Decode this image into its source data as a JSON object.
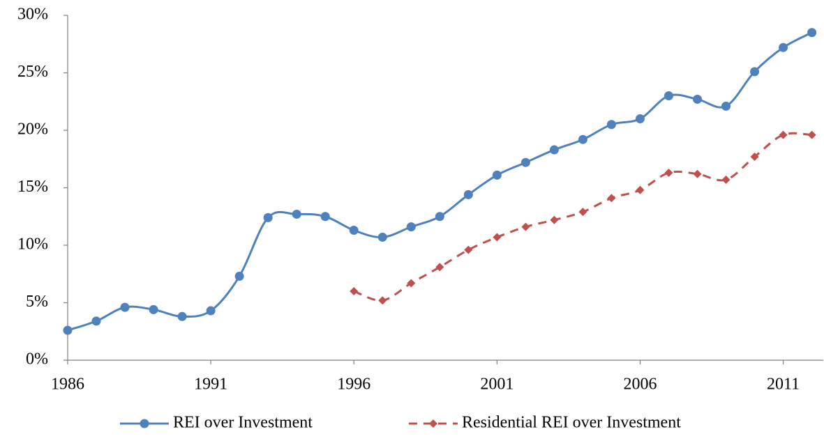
{
  "chart_data": {
    "type": "line",
    "x": [
      1986,
      1987,
      1988,
      1989,
      1990,
      1991,
      1992,
      1993,
      1994,
      1995,
      1996,
      1997,
      1998,
      1999,
      2000,
      2001,
      2002,
      2003,
      2004,
      2005,
      2006,
      2007,
      2008,
      2009,
      2010,
      2011,
      2012
    ],
    "series": [
      {
        "name": "REI over Investment",
        "color": "#4f81bd",
        "marker": "circle",
        "dash": "solid",
        "values": [
          2.6,
          3.4,
          4.6,
          4.4,
          3.8,
          4.3,
          7.3,
          12.4,
          12.7,
          12.5,
          11.3,
          10.7,
          11.6,
          12.5,
          14.4,
          16.1,
          17.2,
          18.3,
          19.2,
          20.5,
          21.0,
          23.0,
          22.7,
          22.1,
          25.1,
          27.2,
          28.5
        ]
      },
      {
        "name": "Residential REI over Investment",
        "color": "#c0504d",
        "marker": "diamond",
        "dash": "dashed",
        "values": [
          null,
          null,
          null,
          null,
          null,
          null,
          null,
          null,
          null,
          null,
          6.0,
          5.2,
          6.7,
          8.1,
          9.6,
          10.7,
          11.6,
          12.2,
          12.9,
          14.1,
          14.8,
          16.3,
          16.2,
          15.7,
          17.7,
          19.6,
          19.6
        ]
      }
    ],
    "xlim": [
      1986,
      2012.4
    ],
    "xticks": [
      1986,
      1991,
      1996,
      2001,
      2006,
      2011
    ],
    "ylim": [
      0,
      30
    ],
    "yticks": [
      {
        "value": 0,
        "label": "0%"
      },
      {
        "value": 5,
        "label": "5%"
      },
      {
        "value": 10,
        "label": "10%"
      },
      {
        "value": 15,
        "label": "15%"
      },
      {
        "value": 20,
        "label": "20%"
      },
      {
        "value": 25,
        "label": "25%"
      },
      {
        "value": 30,
        "label": "30%"
      }
    ],
    "grid": false,
    "legend": "bottom"
  }
}
